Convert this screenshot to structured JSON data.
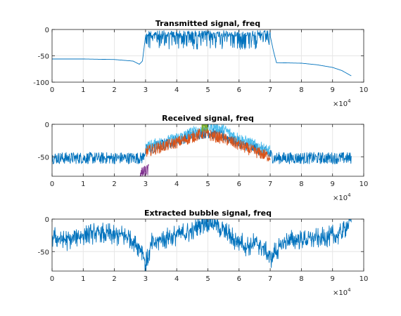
{
  "chart_data": [
    {
      "type": "line",
      "title": "Transmitted signal, freq",
      "xlim": [
        0,
        100000
      ],
      "ylim": [
        -100,
        0
      ],
      "x_ticks": [
        0,
        10000,
        20000,
        30000,
        40000,
        50000,
        60000,
        70000,
        80000,
        90000,
        100000
      ],
      "x_tick_labels": [
        "0",
        "1",
        "2",
        "3",
        "4",
        "5",
        "6",
        "7",
        "8",
        "9",
        "10"
      ],
      "x_exponent_label": "×10",
      "x_exponent": "4",
      "y_ticks": [
        -100,
        -50,
        0
      ],
      "y_tick_labels": [
        "-100",
        "-50",
        "0"
      ],
      "grid": true,
      "series": [
        {
          "color": "#0072BD",
          "x": [
            0,
            10000,
            20000,
            26000,
            28000,
            29000,
            30000,
            40000,
            50000,
            60000,
            70000,
            71000,
            72000,
            80000,
            85000,
            90000,
            93000,
            96000
          ],
          "y": [
            -56,
            -56,
            -57,
            -60,
            -66,
            -60,
            -12,
            -12,
            -12,
            -12,
            -12,
            -40,
            -63,
            -64,
            -67,
            -72,
            -78,
            -88
          ],
          "noise_band": {
            "x_range": [
              30000,
              70000
            ],
            "top": -2,
            "bottom": -38
          }
        }
      ]
    },
    {
      "type": "line",
      "title": "Received signal, freq",
      "xlim": [
        0,
        100000
      ],
      "ylim": [
        -80,
        0
      ],
      "x_ticks": [
        0,
        10000,
        20000,
        30000,
        40000,
        50000,
        60000,
        70000,
        80000,
        90000,
        100000
      ],
      "x_tick_labels": [
        "0",
        "1",
        "2",
        "3",
        "4",
        "5",
        "6",
        "7",
        "8",
        "9",
        "10"
      ],
      "x_exponent_label": "×10",
      "x_exponent": "4",
      "y_ticks": [
        -50,
        0
      ],
      "y_tick_labels": [
        "-50",
        "0"
      ],
      "grid": true,
      "series": [
        {
          "color": "#0072BD",
          "x": [
            0,
            10000,
            20000,
            29000,
            30000,
            35000,
            40000,
            45000,
            50000,
            55000,
            60000,
            65000,
            70000,
            71000,
            80000,
            90000,
            96000
          ],
          "y": [
            -52,
            -52,
            -52,
            -52,
            -40,
            -32,
            -25,
            -16,
            -12,
            -18,
            -28,
            -36,
            -46,
            -52,
            -52,
            -52,
            -52
          ]
        },
        {
          "color": "#4DBEEE",
          "x": [
            30000,
            35000,
            40000,
            45000,
            50000,
            52000,
            55000,
            60000,
            65000,
            70000
          ],
          "y": [
            -35,
            -28,
            -22,
            -12,
            -6,
            -3,
            -8,
            -22,
            -32,
            -42
          ]
        },
        {
          "color": "#D95319",
          "x": [
            30000,
            35000,
            40000,
            45000,
            48000,
            50000,
            55000,
            60000,
            65000,
            70000
          ],
          "y": [
            -42,
            -35,
            -28,
            -20,
            -14,
            -16,
            -22,
            -32,
            -42,
            -50
          ]
        },
        {
          "color": "#77AC30",
          "x": [
            48000,
            49000,
            50000
          ],
          "y": [
            -4,
            -1,
            -5
          ]
        },
        {
          "color": "#7E2F8E",
          "x": [
            28000,
            30000,
            31000
          ],
          "y": [
            -78,
            -72,
            -70
          ]
        }
      ]
    },
    {
      "type": "line",
      "title": "Extracted bubble signal, freq",
      "xlim": [
        0,
        100000
      ],
      "ylim": [
        -80,
        0
      ],
      "x_ticks": [
        0,
        10000,
        20000,
        30000,
        40000,
        50000,
        60000,
        70000,
        80000,
        90000,
        100000
      ],
      "x_tick_labels": [
        "0",
        "1",
        "2",
        "3",
        "4",
        "5",
        "6",
        "7",
        "8",
        "9",
        "10"
      ],
      "x_exponent_label": "×10",
      "x_exponent": "4",
      "y_ticks": [
        -50,
        0
      ],
      "y_tick_labels": [
        "-50",
        "0"
      ],
      "grid": true,
      "series": [
        {
          "color": "#0072BD",
          "x": [
            0,
            5000,
            10000,
            15000,
            20000,
            25000,
            29000,
            30000,
            32000,
            36000,
            40000,
            45000,
            48000,
            50000,
            52000,
            55000,
            58000,
            62000,
            66000,
            68000,
            70000,
            72000,
            75000,
            80000,
            85000,
            88000,
            90000,
            92000,
            94000,
            95000,
            96000
          ],
          "y": [
            -28,
            -32,
            -24,
            -22,
            -24,
            -28,
            -48,
            -72,
            -38,
            -30,
            -24,
            -20,
            -6,
            -4,
            -6,
            -18,
            -30,
            -40,
            -38,
            -46,
            -60,
            -48,
            -34,
            -32,
            -30,
            -28,
            -26,
            -24,
            -16,
            -6,
            -2
          ]
        }
      ]
    }
  ]
}
